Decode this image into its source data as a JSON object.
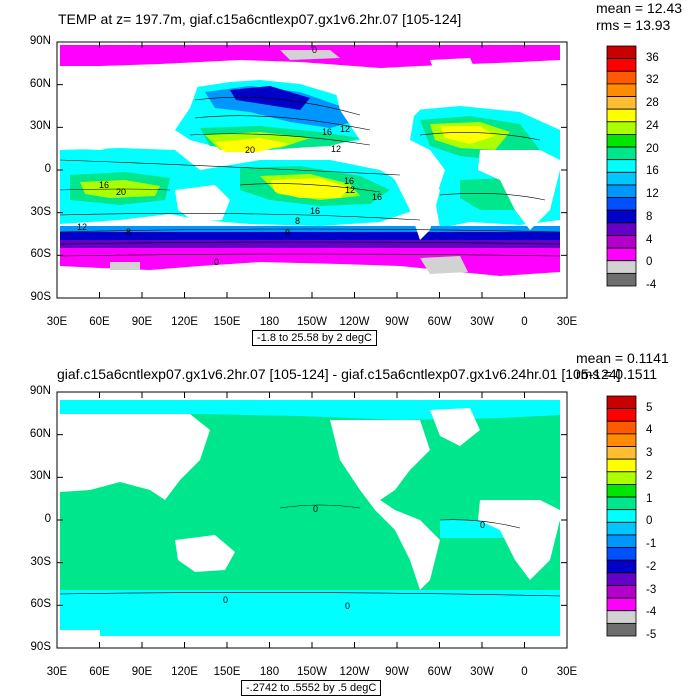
{
  "panels": [
    {
      "title": "TEMP at z= 197.7m, giaf.c15a6cntlexp07.gx1v6.2hr.07 [105-124]",
      "stats": {
        "mean": "mean = 12.43",
        "rms": "rms = 13.93"
      },
      "contour_info": "-1.8 to 25.58 by 2 degC",
      "colorbar": {
        "labels": [
          "36",
          "32",
          "28",
          "24",
          "20",
          "16",
          "12",
          "8",
          "4",
          "0",
          "-4"
        ],
        "colors": [
          "#c80000",
          "#ff0000",
          "#ff5a00",
          "#ff8c00",
          "#ffbe32",
          "#ffff00",
          "#aaff00",
          "#00e600",
          "#00e68c",
          "#00ffff",
          "#00c8ff",
          "#0096ff",
          "#0050ff",
          "#0000c8",
          "#6400c8",
          "#b400c8",
          "#ff00ff",
          "#d2d2d2",
          "#6e6e6e"
        ]
      },
      "contour_labels": [
        "0",
        "16",
        "12",
        "20",
        "16",
        "20",
        "12",
        "16",
        "12",
        "16",
        "8",
        "12",
        "8",
        "0",
        "8",
        "16"
      ]
    },
    {
      "title": "giaf.c15a6cntlexp07.gx1v6.2hr.07 [105-124] - giaf.c15a6cntlexp07.gx1v6.24hr.01 [105-124]",
      "stats": {
        "mean": "mean = 0.1141",
        "rms": "rms = 0.1511"
      },
      "contour_info": "-.2742 to .5552 by .5 degC",
      "colorbar": {
        "labels": [
          "5",
          "4",
          "3",
          "2",
          "1",
          "0",
          "-1",
          "-2",
          "-3",
          "-4",
          "-5"
        ],
        "colors": [
          "#c80000",
          "#ff0000",
          "#ff5a00",
          "#ff8c00",
          "#ffbe32",
          "#ffff00",
          "#aaff00",
          "#00e600",
          "#00e68c",
          "#00ffff",
          "#00c8ff",
          "#0096ff",
          "#0050ff",
          "#0000c8",
          "#6400c8",
          "#b400c8",
          "#ff00ff",
          "#d2d2d2",
          "#6e6e6e"
        ]
      },
      "contour_labels": [
        "0",
        "0",
        "0",
        "0"
      ]
    }
  ],
  "axes": {
    "x_ticks": [
      "30E",
      "60E",
      "90E",
      "120E",
      "150E",
      "180",
      "150W",
      "120W",
      "90W",
      "60W",
      "30W",
      "0",
      "30E"
    ],
    "y_ticks": [
      "90N",
      "60N",
      "30N",
      "0",
      "30S",
      "60S",
      "90S"
    ]
  }
}
